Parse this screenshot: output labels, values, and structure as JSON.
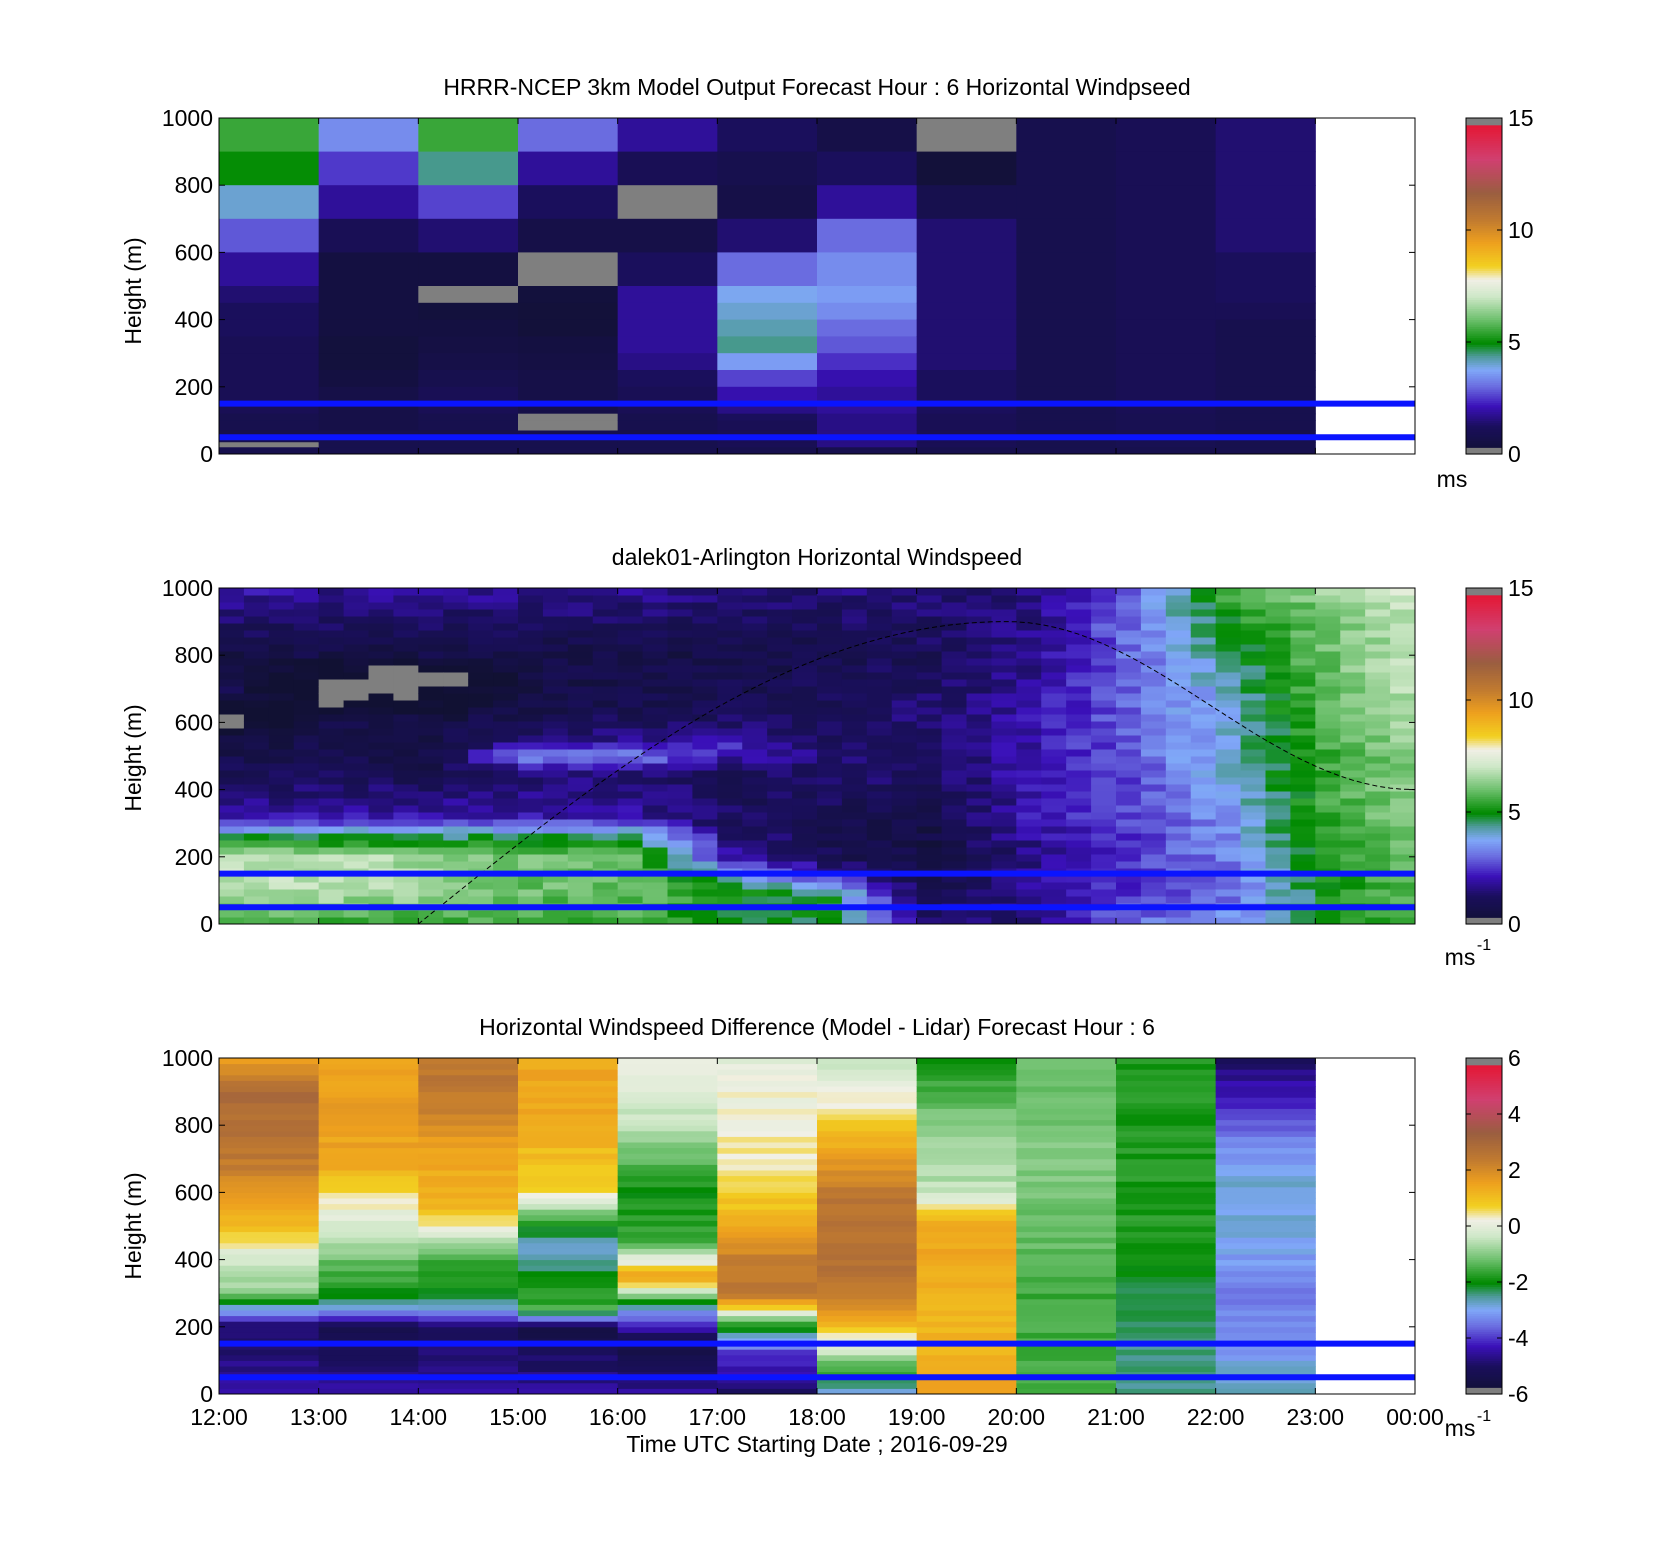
{
  "xaxis": {
    "label": "Time UTC  Starting Date ; 2016-09-29",
    "ticks": [
      "12:00",
      "13:00",
      "14:00",
      "15:00",
      "16:00",
      "17:00",
      "18:00",
      "19:00",
      "20:00",
      "21:00",
      "22:00",
      "23:00",
      "00:00"
    ],
    "range_hours": [
      12,
      24
    ]
  },
  "chart_data": [
    {
      "type": "heatmap",
      "title": "HRRR-NCEP 3km Model Output   Forecast Hour : 6 Horizontal Windpseed",
      "ylabel": "Height (m)",
      "ylim": [
        0,
        1000
      ],
      "yticks": [
        "0",
        "200",
        "400",
        "600",
        "800",
        "1000"
      ],
      "colorbar": {
        "min": 0,
        "max": 15,
        "ticks": [
          "0",
          "5",
          "10",
          "15"
        ],
        "unit": "ms",
        "unit_sup": ""
      },
      "reference_lines_m": [
        50,
        150
      ],
      "columns_hours": [
        12,
        13,
        14,
        15,
        16,
        17,
        18,
        19,
        20,
        21,
        22
      ],
      "rows_top_m": [
        1000,
        900,
        800,
        700,
        600,
        500,
        450,
        400,
        350,
        300,
        250,
        200,
        150,
        120,
        100,
        70,
        50,
        35,
        20
      ],
      "values_ms": [
        [
          5.5,
          3.4,
          5.5,
          3.0,
          1.8,
          1.2,
          0.6,
          -1,
          0.8,
          1.0,
          1.4
        ],
        [
          5.0,
          2.5,
          4.4,
          1.8,
          1.0,
          0.8,
          1.2,
          0.2,
          0.8,
          1.0,
          1.4
        ],
        [
          4.0,
          1.8,
          2.6,
          1.2,
          -1,
          0.6,
          1.8,
          0.8,
          0.8,
          1.0,
          1.4
        ],
        [
          2.8,
          1.0,
          1.4,
          0.6,
          0.6,
          1.4,
          3.0,
          1.4,
          0.8,
          1.0,
          1.4
        ],
        [
          1.8,
          0.4,
          0.4,
          -1,
          1.2,
          3.0,
          3.4,
          1.4,
          0.8,
          1.0,
          1.2
        ],
        [
          1.4,
          0.4,
          -1,
          0.3,
          1.8,
          3.8,
          3.6,
          1.4,
          0.8,
          1.0,
          1.2
        ],
        [
          1.2,
          0.4,
          0.3,
          0.2,
          1.8,
          4.0,
          3.4,
          1.4,
          0.8,
          1.0,
          1.0
        ],
        [
          1.2,
          0.4,
          0.4,
          0.2,
          1.8,
          4.2,
          3.0,
          1.4,
          0.8,
          1.0,
          0.8
        ],
        [
          1.0,
          0.3,
          0.5,
          0.4,
          1.8,
          4.4,
          2.8,
          1.4,
          0.8,
          1.0,
          0.8
        ],
        [
          1.0,
          0.3,
          0.6,
          0.5,
          1.6,
          3.6,
          2.4,
          1.4,
          0.8,
          1.0,
          0.8
        ],
        [
          1.0,
          0.4,
          0.8,
          0.6,
          1.2,
          2.6,
          2.0,
          1.2,
          0.8,
          1.0,
          0.8
        ],
        [
          1.0,
          0.6,
          1.0,
          0.6,
          1.0,
          2.0,
          1.8,
          1.2,
          0.8,
          1.0,
          0.8
        ],
        [
          1.0,
          0.6,
          1.0,
          0.6,
          1.0,
          1.6,
          1.8,
          1.2,
          0.8,
          1.0,
          0.8
        ],
        [
          0.8,
          0.6,
          0.8,
          -1,
          0.8,
          1.2,
          1.6,
          1.0,
          0.8,
          0.9,
          0.8
        ],
        [
          0.8,
          0.6,
          0.8,
          -1,
          0.8,
          1.0,
          1.6,
          1.0,
          0.8,
          0.9,
          0.8
        ],
        [
          0.8,
          0.8,
          0.8,
          0.8,
          0.8,
          1.0,
          1.6,
          1.0,
          0.8,
          0.9,
          0.8
        ],
        [
          0.8,
          0.8,
          0.8,
          0.8,
          0.8,
          1.0,
          1.6,
          1.0,
          0.8,
          0.9,
          0.8
        ],
        [
          -1,
          0.8,
          0.8,
          0.8,
          0.8,
          1.0,
          1.6,
          1.0,
          0.8,
          0.9,
          0.8
        ],
        [
          0.8,
          0.8,
          0.8,
          0.8,
          0.8,
          0.8,
          0.8,
          0.8,
          0.8,
          0.8,
          0.8
        ]
      ]
    },
    {
      "type": "heatmap",
      "title": "dalek01-Arlington  Horizontal Windspeed",
      "ylabel": "Height (m)",
      "ylim": [
        0,
        1000
      ],
      "yticks": [
        "0",
        "200",
        "400",
        "600",
        "800",
        "1000"
      ],
      "colorbar": {
        "min": 0,
        "max": 15,
        "ticks": [
          "0",
          "5",
          "10",
          "15"
        ],
        "unit": "ms",
        "unit_sup": "-1"
      },
      "reference_lines_m": [
        50,
        150
      ],
      "hours": [
        12,
        13,
        14,
        15,
        16,
        17,
        18,
        19,
        20,
        21,
        22,
        23,
        24
      ],
      "profiles_ms": [
        {
          "heights_m": [
            0,
            100,
            200,
            250,
            320,
            480,
            540,
            620,
            680,
            800,
            1000
          ],
          "values_ms": [
            5.5,
            6.8,
            7.0,
            5.0,
            2.0,
            0.8,
            0.5,
            -1,
            0.8,
            0.5,
            2.0
          ]
        },
        {
          "heights_m": [
            0,
            100,
            200,
            250,
            320,
            480,
            600,
            700,
            800,
            1000
          ],
          "values_ms": [
            5.5,
            6.8,
            7.0,
            5.0,
            2.0,
            0.8,
            0.6,
            -1,
            0.6,
            1.8
          ]
        },
        {
          "heights_m": [
            0,
            100,
            200,
            250,
            320,
            450,
            600,
            740,
            800,
            1000
          ],
          "values_ms": [
            5.5,
            6.5,
            6.5,
            5.0,
            2.0,
            0.8,
            0.6,
            -1,
            0.6,
            1.8
          ]
        },
        {
          "heights_m": [
            0,
            100,
            200,
            250,
            320,
            450,
            500,
            550,
            640,
            800,
            1000
          ],
          "values_ms": [
            5.5,
            6.0,
            6.0,
            5.0,
            2.0,
            1.4,
            3.5,
            1.4,
            0.6,
            0.6,
            1.8
          ]
        },
        {
          "heights_m": [
            0,
            100,
            200,
            250,
            320,
            450,
            500,
            550,
            640,
            800,
            1000
          ],
          "values_ms": [
            5.5,
            6.0,
            6.0,
            5.0,
            2.0,
            1.4,
            3.5,
            1.6,
            0.8,
            0.6,
            1.8
          ]
        },
        {
          "heights_m": [
            0,
            100,
            150,
            200,
            300,
            450,
            520,
            600,
            800,
            1000
          ],
          "values_ms": [
            5.0,
            5.0,
            4.0,
            2.0,
            1.2,
            1.0,
            2.5,
            1.2,
            0.6,
            1.5
          ]
        },
        {
          "heights_m": [
            0,
            60,
            100,
            150,
            200,
            300,
            450,
            600,
            800,
            1000
          ],
          "values_ms": [
            4.5,
            5.0,
            4.5,
            2.0,
            1.0,
            0.8,
            1.4,
            1.2,
            0.8,
            1.5
          ]
        },
        {
          "heights_m": [
            0,
            60,
            100,
            150,
            200,
            300,
            450,
            600,
            800,
            1000
          ],
          "values_ms": [
            1.5,
            1.0,
            0.6,
            0.5,
            0.5,
            0.6,
            1.2,
            1.5,
            1.0,
            1.5
          ]
        },
        {
          "heights_m": [
            0,
            100,
            200,
            300,
            500,
            700,
            900,
            1000
          ],
          "values_ms": [
            1.5,
            2.0,
            1.5,
            2.0,
            2.0,
            1.8,
            1.6,
            1.5
          ]
        },
        {
          "heights_m": [
            0,
            100,
            300,
            500,
            700,
            900,
            1000
          ],
          "values_ms": [
            3.0,
            2.5,
            2.5,
            2.8,
            3.0,
            3.0,
            3.0
          ]
        },
        {
          "heights_m": [
            0,
            100,
            300,
            500,
            700,
            900,
            1000
          ],
          "values_ms": [
            3.5,
            3.0,
            3.5,
            4.0,
            4.0,
            5.0,
            5.5
          ]
        },
        {
          "heights_m": [
            0,
            100,
            300,
            500,
            700,
            900,
            1000
          ],
          "values_ms": [
            5.0,
            5.0,
            5.5,
            5.5,
            6.0,
            6.0,
            6.5
          ]
        },
        {
          "heights_m": [
            0,
            100,
            300,
            500,
            700,
            900,
            1000
          ],
          "values_ms": [
            5.5,
            6.0,
            6.5,
            6.5,
            7.0,
            7.0,
            7.5
          ]
        }
      ],
      "curve_dashed": {
        "start": [
          14.0,
          0
        ],
        "peak": [
          19.9,
          900
        ],
        "end": [
          24.0,
          400
        ]
      }
    },
    {
      "type": "heatmap",
      "title": "Horizontal Windspeed Difference (Model - Lidar) Forecast Hour : 6",
      "ylabel": "Height (m)",
      "xlabel": "Time UTC  Starting Date ; 2016-09-29",
      "ylim": [
        0,
        1000
      ],
      "yticks": [
        "0",
        "200",
        "400",
        "600",
        "800",
        "1000"
      ],
      "colorbar": {
        "min": -6,
        "max": 6,
        "ticks": [
          "-6",
          "-4",
          "-2",
          "0",
          "2",
          "4",
          "6"
        ],
        "unit": "ms",
        "unit_sup": "-1"
      },
      "reference_lines_m": [
        50,
        150
      ],
      "columns_hours": [
        12,
        13,
        14,
        15,
        16,
        17,
        18,
        19,
        20,
        21,
        22
      ],
      "profiles_diff_ms": [
        {
          "heights_m": [
            0,
            200,
            250,
            300,
            420,
            500,
            700,
            900,
            1000
          ],
          "values_ms": [
            -4.5,
            -5,
            -3,
            -1,
            0,
            1,
            2.5,
            3,
            1.5
          ]
        },
        {
          "heights_m": [
            0,
            200,
            250,
            300,
            420,
            550,
            700,
            900,
            1000
          ],
          "values_ms": [
            -4.5,
            -5.5,
            -3,
            -2,
            -1,
            0.2,
            1.5,
            1.6,
            1.6
          ]
        },
        {
          "heights_m": [
            0,
            200,
            250,
            300,
            400,
            550,
            700,
            900,
            1000
          ],
          "values_ms": [
            -4.5,
            -5,
            -3,
            -2,
            -1.5,
            1.2,
            1.4,
            2.5,
            2.5
          ]
        },
        {
          "heights_m": [
            0,
            200,
            250,
            350,
            420,
            500,
            600,
            800,
            1000
          ],
          "values_ms": [
            -4.5,
            -5.5,
            -1.5,
            -2,
            -3,
            -2,
            0.6,
            1.4,
            1.4
          ]
        },
        {
          "heights_m": [
            0,
            150,
            250,
            350,
            450,
            600,
            800,
            1000
          ],
          "values_ms": [
            -4.5,
            -5.5,
            -3,
            1.5,
            -1.5,
            -2,
            -0.5,
            0.2
          ]
        },
        {
          "heights_m": [
            0,
            120,
            200,
            300,
            400,
            500,
            700,
            900,
            1000
          ],
          "values_ms": [
            -5,
            -4,
            -2,
            2.5,
            2.4,
            1.2,
            0.4,
            0.2,
            0
          ]
        },
        {
          "heights_m": [
            0,
            100,
            150,
            250,
            400,
            600,
            800,
            1000
          ],
          "values_ms": [
            -3,
            -1,
            0,
            2,
            2.8,
            2.5,
            0.8,
            -0.5
          ]
        },
        {
          "heights_m": [
            0,
            100,
            300,
            500,
            600,
            800,
            1000
          ],
          "values_ms": [
            1.5,
            1.2,
            1.2,
            1.5,
            -0.5,
            -1,
            -2
          ]
        },
        {
          "heights_m": [
            0,
            150,
            300,
            500,
            700,
            1000
          ],
          "values_ms": [
            -1.5,
            -1.5,
            -1.6,
            -1.2,
            -1.0,
            -1.2
          ]
        },
        {
          "heights_m": [
            0,
            150,
            300,
            500,
            700,
            1000
          ],
          "values_ms": [
            -2.5,
            -2.5,
            -2.2,
            -1.8,
            -1.8,
            -1.8
          ]
        },
        {
          "heights_m": [
            0,
            150,
            300,
            450,
            650,
            850,
            1000
          ],
          "values_ms": [
            -2.5,
            -3.2,
            -3.5,
            -3.0,
            -2.8,
            -4.0,
            -5.0
          ]
        }
      ]
    }
  ]
}
